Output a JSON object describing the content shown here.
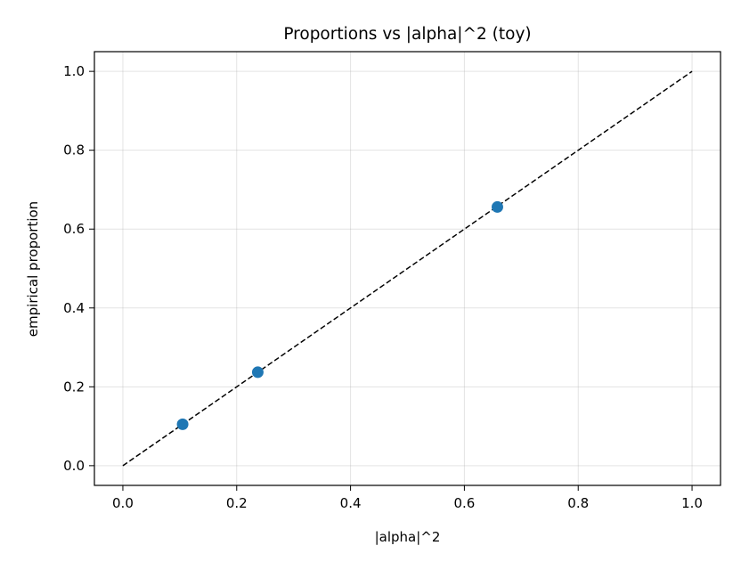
{
  "chart_data": {
    "type": "scatter",
    "title": "Proportions vs |alpha|^2 (toy)",
    "xlabel": "|alpha|^2",
    "ylabel": "empirical proportion",
    "xlim": [
      -0.05,
      1.05
    ],
    "ylim": [
      -0.05,
      1.05
    ],
    "xticks": [
      0.0,
      0.2,
      0.4,
      0.6,
      0.8,
      1.0
    ],
    "yticks": [
      0.0,
      0.2,
      0.4,
      0.6,
      0.8,
      1.0
    ],
    "xtick_labels": [
      "0.0",
      "0.2",
      "0.4",
      "0.6",
      "0.8",
      "1.0"
    ],
    "ytick_labels": [
      "0.0",
      "0.2",
      "0.4",
      "0.6",
      "0.8",
      "1.0"
    ],
    "grid": true,
    "legend": "none",
    "series": [
      {
        "kind": "scatter",
        "color": "#1f77b4",
        "x": [
          0.105,
          0.237,
          0.658
        ],
        "y": [
          0.105,
          0.237,
          0.656
        ]
      },
      {
        "kind": "line",
        "style": "dashed",
        "color": "#000000",
        "x": [
          0.0,
          1.0
        ],
        "y": [
          0.0,
          1.0
        ]
      }
    ]
  }
}
